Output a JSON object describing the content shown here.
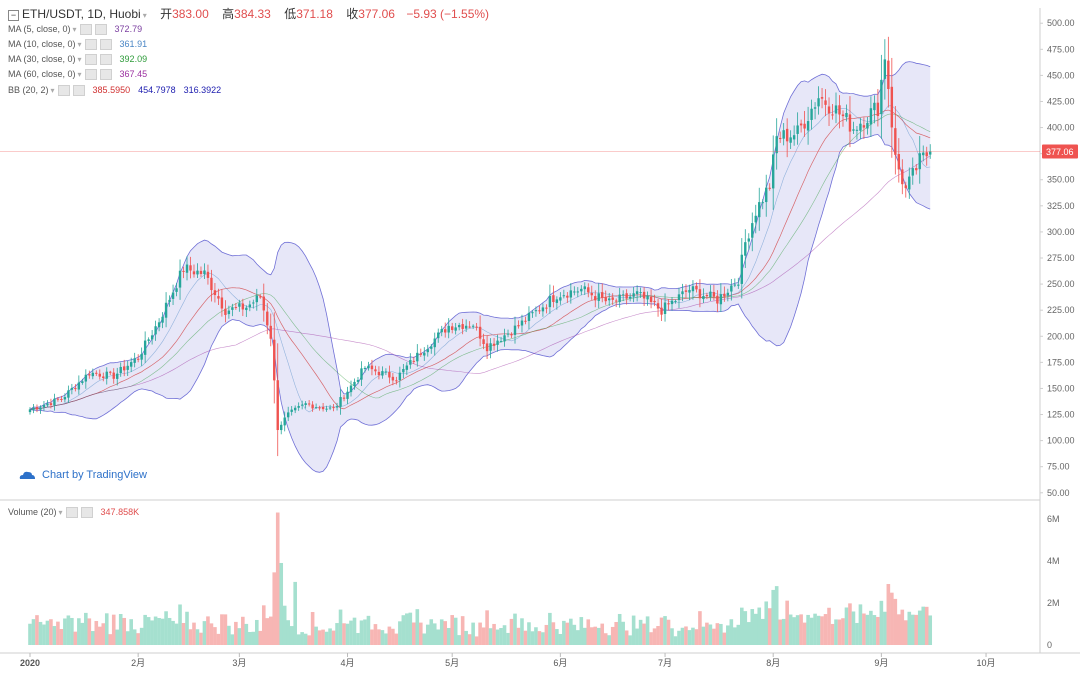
{
  "header": {
    "symbol": "ETH/USDT, 1D, Huobi",
    "open_label": "开",
    "open": "383.00",
    "high_label": "高",
    "high": "384.33",
    "low_label": "低",
    "low": "371.18",
    "close_label": "收",
    "close": "377.06",
    "change": "−5.93 (−1.55%)"
  },
  "legend": [
    {
      "label": "MA (5, close, 0)",
      "value": "372.79",
      "color": "#7b3fa0"
    },
    {
      "label": "MA (10, close, 0)",
      "value": "361.91",
      "color": "#4a86c5"
    },
    {
      "label": "MA (30, close, 0)",
      "value": "392.09",
      "color": "#2e9b3a"
    },
    {
      "label": "MA (60, close, 0)",
      "value": "367.45",
      "color": "#9b2fa0"
    },
    {
      "label": "BB (20, 2)",
      "values": [
        "385.5950",
        "454.7978",
        "316.3922"
      ],
      "colors": [
        "#d03030",
        "#2020b0",
        "#2020b0"
      ]
    }
  ],
  "volume_legend": {
    "label": "Volume (20)",
    "value": "347.858K",
    "color": "#e04e4e"
  },
  "watermark": "Chart by TradingView",
  "price_badge": "377.06",
  "colors": {
    "up": "#26a69a",
    "down": "#ef5350",
    "band_fill": "#c9c9ef",
    "band_line": "#6f6fd6",
    "vol_up": "#a5e0cf",
    "vol_down": "#f7b6b4"
  },
  "chart_data": {
    "type": "candlestick",
    "price_axis": {
      "ticks": [
        50,
        75,
        100,
        125,
        150,
        175,
        200,
        225,
        250,
        275,
        300,
        325,
        350,
        375,
        400,
        425,
        450,
        475,
        500
      ],
      "ylim": [
        45,
        505
      ]
    },
    "volume_axis": {
      "ticks": [
        0,
        2,
        4,
        6
      ],
      "tick_labels": [
        "0",
        "2M",
        "4M",
        "6M"
      ]
    },
    "x_axis": {
      "tick_labels": [
        "2020",
        "2月",
        "3月",
        "4月",
        "5月",
        "6月",
        "7月",
        "8月",
        "9月",
        "10月"
      ],
      "start": "2020-01-01",
      "end": "2020-10-05"
    },
    "close_anchors": [
      [
        "2020-01-01",
        130
      ],
      [
        "2020-01-10",
        140
      ],
      [
        "2020-01-18",
        165
      ],
      [
        "2020-01-25",
        162
      ],
      [
        "2020-02-01",
        180
      ],
      [
        "2020-02-07",
        215
      ],
      [
        "2020-02-14",
        265
      ],
      [
        "2020-02-20",
        260
      ],
      [
        "2020-02-26",
        225
      ],
      [
        "2020-03-03",
        228
      ],
      [
        "2020-03-07",
        238
      ],
      [
        "2020-03-10",
        200
      ],
      [
        "2020-03-12",
        112
      ],
      [
        "2020-03-15",
        125
      ],
      [
        "2020-03-20",
        135
      ],
      [
        "2020-03-28",
        130
      ],
      [
        "2020-04-06",
        170
      ],
      [
        "2020-04-15",
        160
      ],
      [
        "2020-04-22",
        185
      ],
      [
        "2020-04-30",
        210
      ],
      [
        "2020-05-07",
        212
      ],
      [
        "2020-05-11",
        190
      ],
      [
        "2020-05-20",
        210
      ],
      [
        "2020-05-31",
        240
      ],
      [
        "2020-06-07",
        245
      ],
      [
        "2020-06-15",
        232
      ],
      [
        "2020-06-23",
        240
      ],
      [
        "2020-06-30",
        225
      ],
      [
        "2020-07-08",
        245
      ],
      [
        "2020-07-16",
        235
      ],
      [
        "2020-07-22",
        255
      ],
      [
        "2020-07-24",
        290
      ],
      [
        "2020-07-27",
        320
      ],
      [
        "2020-07-31",
        345
      ],
      [
        "2020-08-02",
        390
      ],
      [
        "2020-08-08",
        395
      ],
      [
        "2020-08-14",
        430
      ],
      [
        "2020-08-18",
        420
      ],
      [
        "2020-08-24",
        400
      ],
      [
        "2020-08-31",
        420
      ],
      [
        "2020-09-02",
        470
      ],
      [
        "2020-09-03",
        440
      ],
      [
        "2020-09-05",
        370
      ],
      [
        "2020-09-08",
        340
      ],
      [
        "2020-09-12",
        368
      ],
      [
        "2020-09-15",
        377
      ]
    ],
    "volume_spikes": [
      [
        "2020-03-12",
        6.3
      ],
      [
        "2020-03-13",
        3.9
      ],
      [
        "2020-03-17",
        3.0
      ],
      [
        "2020-09-03",
        2.9
      ],
      [
        "2020-09-01",
        2.1
      ],
      [
        "2020-08-02",
        2.8
      ]
    ],
    "last_close": 377.06
  }
}
